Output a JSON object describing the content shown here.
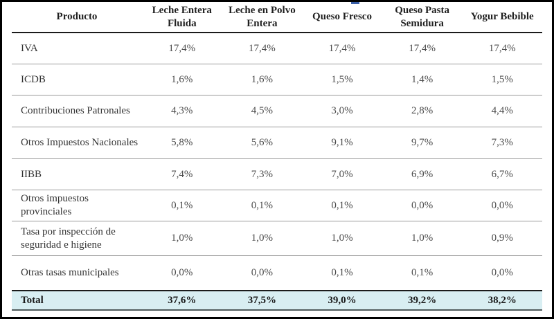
{
  "table": {
    "header": {
      "product_label": "Producto",
      "columns": [
        "Leche Entera Fluida",
        "Leche en Polvo Entera",
        "Queso Fresco",
        "Queso Pasta Semidura",
        "Yogur Bebible"
      ]
    },
    "rows": [
      {
        "label": "IVA",
        "values": [
          "17,4%",
          "17,4%",
          "17,4%",
          "17,4%",
          "17,4%"
        ]
      },
      {
        "label": "ICDB",
        "values": [
          "1,6%",
          "1,6%",
          "1,5%",
          "1,4%",
          "1,5%"
        ]
      },
      {
        "label": "Contribuciones Patronales",
        "values": [
          "4,3%",
          "4,5%",
          "3,0%",
          "2,8%",
          "4,4%"
        ]
      },
      {
        "label": "Otros Impuestos Nacionales",
        "values": [
          "5,8%",
          "5,6%",
          "9,1%",
          "9,7%",
          "7,3%"
        ]
      },
      {
        "label": "IIBB",
        "values": [
          "7,4%",
          "7,3%",
          "7,0%",
          "6,9%",
          "6,7%"
        ]
      },
      {
        "label": "Otros impuestos provinciales",
        "values": [
          "0,1%",
          "0,1%",
          "0,1%",
          "0,0%",
          "0,0%"
        ]
      },
      {
        "label": "Tasa por inspección de seguridad e higiene",
        "values": [
          "1,0%",
          "1,0%",
          "1,0%",
          "1,0%",
          "0,9%"
        ]
      },
      {
        "label": "Otras tasas municipales",
        "values": [
          "0,0%",
          "0,0%",
          "0,1%",
          "0,1%",
          "0,0%"
        ]
      }
    ],
    "total": {
      "label": "Total",
      "values": [
        "37,6%",
        "37,5%",
        "39,0%",
        "39,2%",
        "38,2%"
      ]
    }
  },
  "colors": {
    "total_row_bg": "#d8eef2",
    "header_rule": "#1b1b1b",
    "row_separator": "#999999",
    "outer_frame": "#000000",
    "value_text": "#4c4c4c",
    "artifact_blue": "#3a5fa8"
  }
}
